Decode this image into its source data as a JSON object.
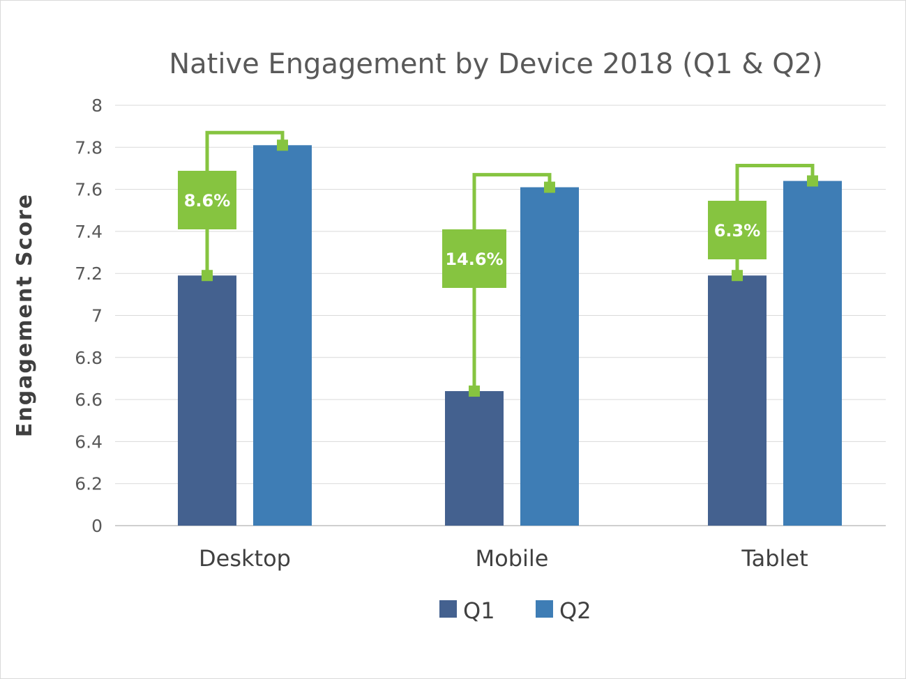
{
  "chart_data": {
    "type": "bar",
    "title": "Native Engagement by Device 2018 (Q1 & Q2)",
    "xlabel": "",
    "ylabel": "Engagement Score",
    "categories": [
      "Desktop",
      "Mobile",
      "Tablet"
    ],
    "series": [
      {
        "name": "Q1",
        "values": [
          7.19,
          6.64,
          7.19
        ],
        "color": "#44618f"
      },
      {
        "name": "Q2",
        "values": [
          7.81,
          7.61,
          7.64
        ],
        "color": "#3e7db5"
      }
    ],
    "y_ticks": [
      "0",
      "6.2",
      "6.4",
      "6.6",
      "6.8",
      "7",
      "7.2",
      "7.4",
      "7.6",
      "7.8",
      "8"
    ],
    "ylim": [
      6,
      8
    ],
    "axis_break": "y axis starts at 0 with a jump to 6.2",
    "grid": true,
    "legend_position": "bottom",
    "annotations": [
      {
        "category": "Desktop",
        "label": "8.6%"
      },
      {
        "category": "Mobile",
        "label": "14.6%"
      },
      {
        "category": "Tablet",
        "label": "6.3%"
      }
    ],
    "annotation_color": "#86c440"
  }
}
